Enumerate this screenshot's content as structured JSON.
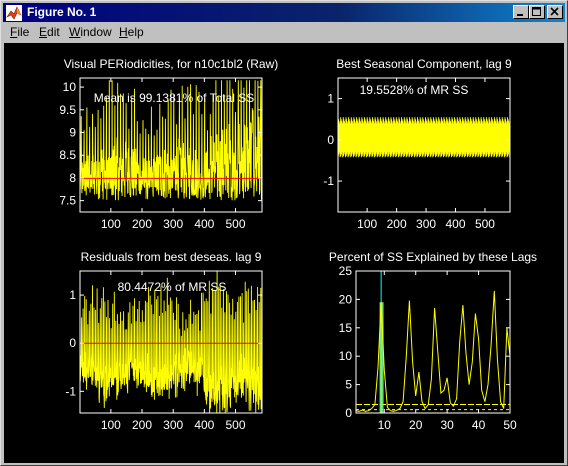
{
  "window": {
    "title": "Figure No. 1",
    "controls": {
      "minimize": "minimize",
      "maximize": "maximize",
      "close": "close"
    }
  },
  "menubar": {
    "items": [
      {
        "first": "F",
        "rest": "ile"
      },
      {
        "first": "E",
        "rest": "dit"
      },
      {
        "first": "W",
        "rest": "indow"
      },
      {
        "first": "H",
        "rest": "elp"
      }
    ]
  },
  "colors": {
    "signal": "#ffff00",
    "mean_line": "#ff0000",
    "highlight": "#00ffff",
    "background": "#000000",
    "axes": "#ffffff"
  },
  "chart_data": [
    {
      "type": "line",
      "title": "Visual PERiodicities, for n10c1bl2 (Raw)",
      "annotation": "Mean is 99.1381% of Total SS",
      "x_ticks": [
        100,
        200,
        300,
        400,
        500
      ],
      "y_ticks": [
        7.5,
        8,
        8.5,
        9,
        9.5,
        10
      ],
      "xlim": [
        1,
        585
      ],
      "ylim": [
        7.25,
        10.2
      ],
      "mean_line": 7.99,
      "n_points": 585
    },
    {
      "type": "line",
      "title": "Best Seasonal Component, lag 9",
      "annotation": "19.5528% of MR SS",
      "x_ticks": [
        100,
        200,
        300,
        400,
        500
      ],
      "y_ticks": [
        -1,
        0,
        1
      ],
      "xlim": [
        1,
        585
      ],
      "ylim": [
        -1.75,
        1.5
      ],
      "pattern_lag9": [
        0.55,
        -0.4,
        0.5,
        -0.35,
        0.45,
        -0.3,
        0.4,
        -0.42,
        0.35
      ]
    },
    {
      "type": "line",
      "title": "Residuals from best deseas. lag 9",
      "annotation": "80.4472% of MR SS",
      "x_ticks": [
        100,
        200,
        300,
        400,
        500
      ],
      "y_ticks": [
        -1,
        0,
        1
      ],
      "xlim": [
        1,
        585
      ],
      "ylim": [
        -1.45,
        1.5
      ],
      "zero_line": 0,
      "n_points": 585
    },
    {
      "type": "line",
      "title": "Percent of SS Explained by these Lags",
      "x_ticks": [
        10,
        20,
        30,
        40,
        50
      ],
      "y_ticks": [
        0,
        5,
        10,
        15,
        20,
        25
      ],
      "xlim": [
        1,
        50
      ],
      "ylim": [
        0,
        25
      ],
      "threshold_lines": [
        1.5,
        0.6
      ],
      "highlight_lag": 9,
      "highlight_value": 25,
      "x": [
        1,
        2,
        3,
        4,
        5,
        6,
        7,
        8,
        9,
        10,
        11,
        12,
        13,
        14,
        15,
        16,
        17,
        18,
        19,
        20,
        21,
        22,
        23,
        24,
        25,
        26,
        27,
        28,
        29,
        30,
        31,
        32,
        33,
        34,
        35,
        36,
        37,
        38,
        39,
        40,
        41,
        42,
        43,
        44,
        45,
        46,
        47,
        48,
        49,
        50
      ],
      "values": [
        0.4,
        0.3,
        0.5,
        0.3,
        0.4,
        0.8,
        1.5,
        8.0,
        19.5,
        7.5,
        1.0,
        0.4,
        0.3,
        0.5,
        0.8,
        2.0,
        10.0,
        19.8,
        9.0,
        3.0,
        7.2,
        2.0,
        0.8,
        1.5,
        6.0,
        18.5,
        11.0,
        3.5,
        4.0,
        6.2,
        1.8,
        1.2,
        2.5,
        12.5,
        19.0,
        10.5,
        5.0,
        9.0,
        17.5,
        13.0,
        4.0,
        2.0,
        5.0,
        12.0,
        21.5,
        9.5,
        2.0,
        0.8,
        15.0,
        10.0
      ]
    }
  ]
}
